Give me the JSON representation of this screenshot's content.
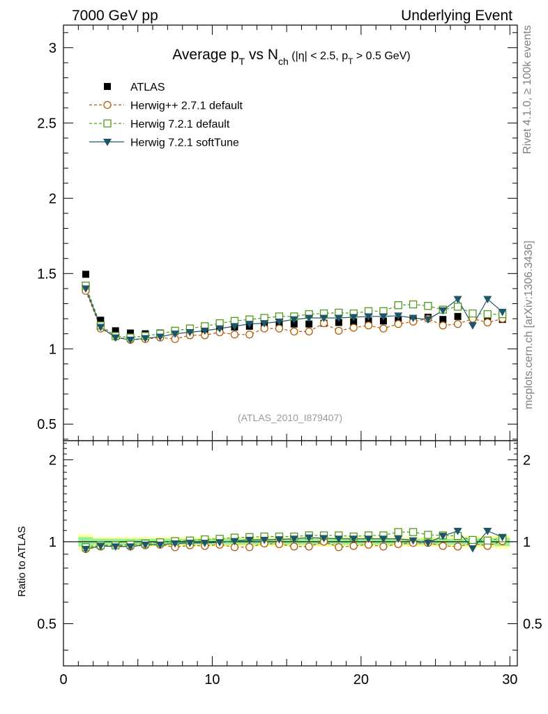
{
  "header": {
    "energy_label": "7000 GeV pp",
    "category_label": "Underlying Event"
  },
  "side_labels": {
    "rivet": "Rivet 4.1.0, ≥ 100k events",
    "mcplots": "mcplots.cern.ch [arXiv:1306.3436]"
  },
  "chart_data": [
    {
      "type": "scatter",
      "panel": "main",
      "title": {
        "t1": "Average p",
        "t1sub": "T",
        "t2": " vs N",
        "t2sub": "ch",
        "t3": " (|η| < 2.5, p",
        "t3sub": "T",
        "t4": " > 0.5 GeV)"
      },
      "watermark": "(ATLAS_2010_I879407)",
      "xlabel": "",
      "ylabel": "",
      "xlim": [
        0,
        30.5
      ],
      "ylim": [
        0.39,
        3.15
      ],
      "y_ticks": [
        0.5,
        1,
        1.5,
        2,
        2.5,
        3
      ],
      "y_tick_labels": [
        "0.5",
        "1",
        "1.5",
        "2",
        "2.5",
        "3"
      ],
      "x": [
        1.5,
        2.5,
        3.5,
        4.5,
        5.5,
        6.5,
        7.5,
        8.5,
        9.5,
        10.5,
        11.5,
        12.5,
        13.5,
        14.5,
        15.5,
        16.5,
        17.5,
        18.5,
        19.5,
        20.5,
        21.5,
        22.5,
        23.5,
        24.5,
        25.5,
        26.5,
        27.5,
        28.5,
        29.5
      ],
      "series": [
        {
          "name": "ATLAS",
          "color": "#000000",
          "marker": "square-filled",
          "line": "none",
          "values": [
            1.495,
            1.19,
            1.12,
            1.105,
            1.1,
            1.105,
            1.115,
            1.125,
            1.13,
            1.14,
            1.145,
            1.15,
            1.155,
            1.16,
            1.165,
            1.165,
            1.17,
            1.175,
            1.18,
            1.185,
            1.185,
            1.19,
            1.195,
            1.21,
            1.195,
            1.215,
            1.22,
            1.215,
            1.195
          ]
        },
        {
          "name": "Herwig++ 2.7.1 default",
          "color": "#b35900",
          "marker": "circle-open",
          "line": "dashed",
          "values": [
            1.385,
            1.135,
            1.08,
            1.06,
            1.065,
            1.075,
            1.065,
            1.09,
            1.09,
            1.11,
            1.095,
            1.095,
            1.135,
            1.135,
            1.115,
            1.115,
            1.17,
            1.12,
            1.14,
            1.155,
            1.135,
            1.165,
            1.18,
            1.2,
            1.155,
            1.165,
            1.2,
            1.175,
            1.2
          ]
        },
        {
          "name": "Herwig 7.2.1 default",
          "color": "#4d9a1a",
          "marker": "square-open",
          "line": "dashed",
          "values": [
            1.42,
            1.155,
            1.085,
            1.075,
            1.085,
            1.1,
            1.12,
            1.135,
            1.15,
            1.17,
            1.185,
            1.195,
            1.205,
            1.215,
            1.215,
            1.23,
            1.235,
            1.24,
            1.235,
            1.25,
            1.25,
            1.29,
            1.295,
            1.285,
            1.26,
            1.28,
            1.235,
            1.23,
            1.23
          ]
        },
        {
          "name": "Herwig 7.2.1 softTune",
          "color": "#1f5569",
          "marker": "triangle-down-filled",
          "line": "solid",
          "values": [
            1.4,
            1.145,
            1.075,
            1.06,
            1.07,
            1.08,
            1.1,
            1.11,
            1.12,
            1.135,
            1.15,
            1.165,
            1.17,
            1.18,
            1.195,
            1.205,
            1.205,
            1.205,
            1.21,
            1.215,
            1.215,
            1.22,
            1.205,
            1.195,
            1.255,
            1.33,
            1.155,
            1.33,
            1.245
          ]
        }
      ]
    },
    {
      "type": "line",
      "panel": "ratio",
      "ylabel": "Ratio to ATLAS",
      "xlabel": "",
      "xlim": [
        0,
        30.5
      ],
      "ylim": [
        0.35,
        2.35
      ],
      "y_ticks": [
        0.5,
        1,
        2
      ],
      "y_tick_labels": [
        "0.5",
        "1",
        "2"
      ],
      "x_ticks": [
        0,
        10,
        20,
        30
      ],
      "x_tick_labels": [
        "0",
        "10",
        "20",
        "30"
      ],
      "x": [
        1.5,
        2.5,
        3.5,
        4.5,
        5.5,
        6.5,
        7.5,
        8.5,
        9.5,
        10.5,
        11.5,
        12.5,
        13.5,
        14.5,
        15.5,
        16.5,
        17.5,
        18.5,
        19.5,
        20.5,
        21.5,
        22.5,
        23.5,
        24.5,
        25.5,
        26.5,
        27.5,
        28.5,
        29.5
      ],
      "band_green_halfwidth": [
        0.04,
        0.025,
        0.025,
        0.025,
        0.025,
        0.025,
        0.025,
        0.025,
        0.025,
        0.025,
        0.025,
        0.025,
        0.025,
        0.025,
        0.025,
        0.025,
        0.025,
        0.025,
        0.025,
        0.025,
        0.025,
        0.025,
        0.025,
        0.025,
        0.025,
        0.025,
        0.03,
        0.03,
        0.035
      ],
      "band_yellow_halfwidth": [
        0.065,
        0.04,
        0.04,
        0.04,
        0.04,
        0.04,
        0.04,
        0.04,
        0.04,
        0.04,
        0.04,
        0.04,
        0.04,
        0.04,
        0.04,
        0.04,
        0.04,
        0.04,
        0.04,
        0.04,
        0.04,
        0.04,
        0.04,
        0.04,
        0.04,
        0.045,
        0.05,
        0.05,
        0.055
      ],
      "series": [
        {
          "name": "Herwig++ 2.7.1 default",
          "color": "#b35900",
          "marker": "circle-open",
          "line": "dashed",
          "values": [
            0.94,
            0.96,
            0.97,
            0.96,
            0.97,
            0.975,
            0.955,
            0.97,
            0.965,
            0.975,
            0.955,
            0.955,
            0.985,
            0.98,
            0.96,
            0.96,
            1.0,
            0.955,
            0.965,
            0.975,
            0.96,
            0.98,
            0.99,
            0.99,
            0.965,
            0.96,
            0.985,
            0.965,
            1.005
          ]
        },
        {
          "name": "Herwig 7.2.1 default",
          "color": "#4d9a1a",
          "marker": "square-open",
          "line": "dashed",
          "values": [
            0.955,
            0.97,
            0.97,
            0.975,
            0.985,
            0.995,
            1.005,
            1.01,
            1.02,
            1.025,
            1.035,
            1.04,
            1.045,
            1.045,
            1.045,
            1.055,
            1.055,
            1.055,
            1.045,
            1.055,
            1.055,
            1.085,
            1.085,
            1.06,
            1.055,
            1.05,
            1.015,
            1.01,
            1.03
          ]
        },
        {
          "name": "Herwig 7.2.1 softTune",
          "color": "#1f5569",
          "marker": "triangle-down-filled",
          "line": "solid",
          "values": [
            0.94,
            0.965,
            0.96,
            0.96,
            0.975,
            0.975,
            0.985,
            0.99,
            0.99,
            0.995,
            1.005,
            1.015,
            1.015,
            1.02,
            1.025,
            1.035,
            1.03,
            1.025,
            1.025,
            1.025,
            1.025,
            1.025,
            1.01,
            0.99,
            1.05,
            1.095,
            0.945,
            1.095,
            1.04
          ]
        }
      ]
    }
  ]
}
